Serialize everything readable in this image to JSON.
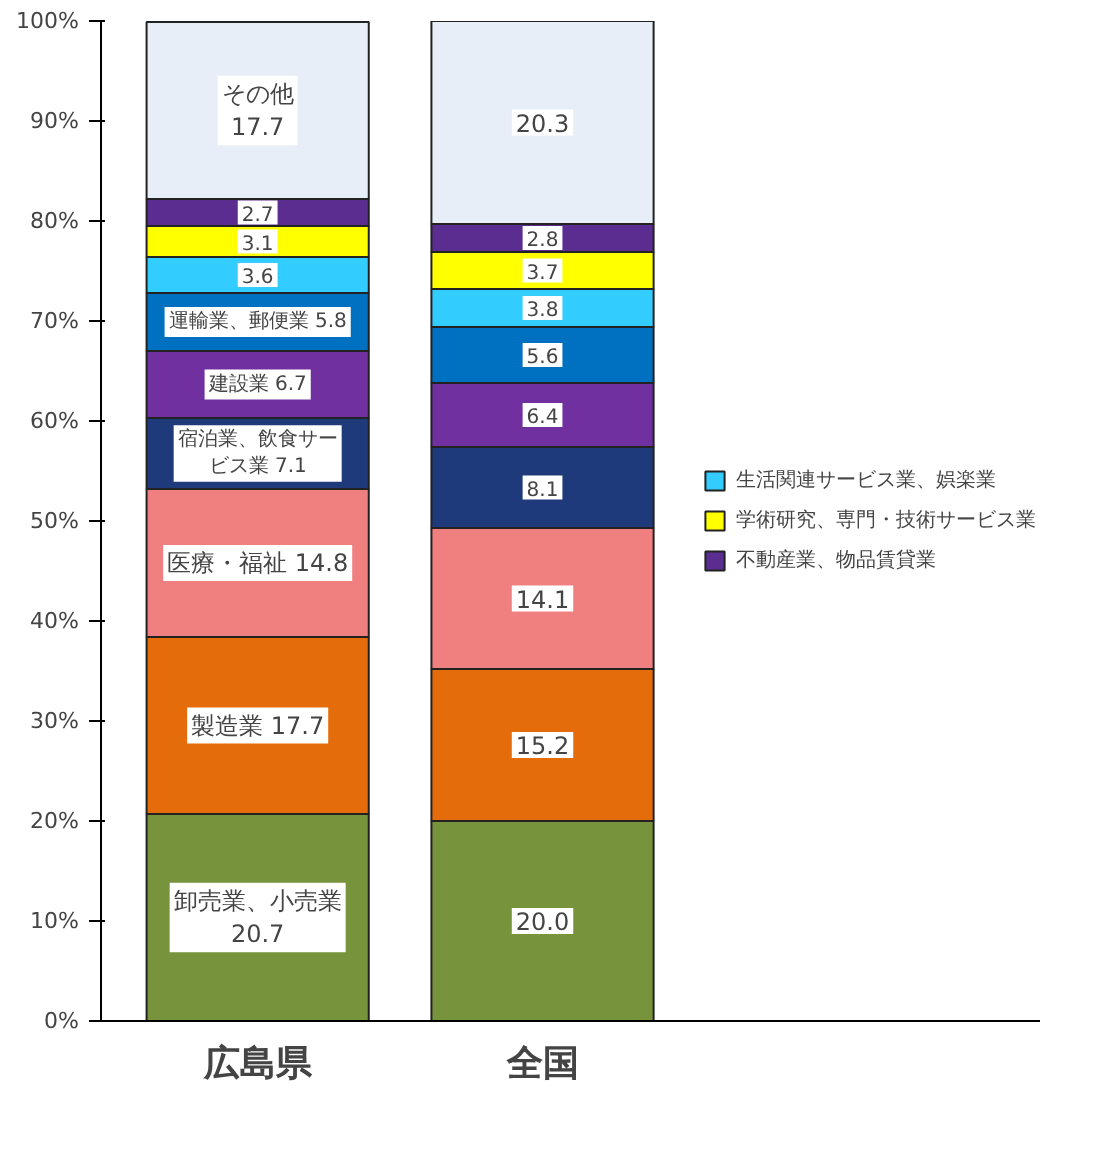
{
  "chart_data": {
    "type": "bar",
    "stacked": true,
    "categories": [
      "広島県",
      "全国"
    ],
    "ylim": [
      0,
      100
    ],
    "yticks": [
      {
        "value": 0,
        "label": "0%"
      },
      {
        "value": 10,
        "label": "10%"
      },
      {
        "value": 20,
        "label": "20%"
      },
      {
        "value": 30,
        "label": "30%"
      },
      {
        "value": 40,
        "label": "40%"
      },
      {
        "value": 50,
        "label": "50%"
      },
      {
        "value": 60,
        "label": "60%"
      },
      {
        "value": 70,
        "label": "70%"
      },
      {
        "value": 80,
        "label": "80%"
      },
      {
        "value": 90,
        "label": "90%"
      },
      {
        "value": 100,
        "label": "100%"
      }
    ],
    "grid": false,
    "legend": "right",
    "series": [
      {
        "color": "#77933c",
        "values": [
          20.7,
          20.0
        ],
        "value_labels": [
          "卸売業、小売業\n20.7",
          "20.0"
        ]
      },
      {
        "color": "#e46c0a",
        "values": [
          17.7,
          15.2
        ],
        "value_labels": [
          "製造業 17.7",
          "15.2"
        ]
      },
      {
        "color": "#f08080",
        "values": [
          14.8,
          14.1
        ],
        "value_labels": [
          "医療・福祉 14.8",
          "14.1"
        ]
      },
      {
        "color": "#1f3a7a",
        "values": [
          7.1,
          8.1
        ],
        "value_labels": [
          "宿泊業、飲食サービス業 7.1",
          "8.1"
        ]
      },
      {
        "color": "#7030a0",
        "values": [
          6.7,
          6.4
        ],
        "value_labels": [
          "建設業 6.7",
          "6.4"
        ]
      },
      {
        "color": "#0070c0",
        "values": [
          5.8,
          5.6
        ],
        "value_labels": [
          "運輸業、郵便業 5.8",
          "5.6"
        ]
      },
      {
        "name": "生活関連サービス業、娯楽業",
        "color": "#33ccff",
        "values": [
          3.6,
          3.8
        ],
        "value_labels": [
          "3.6",
          "3.8"
        ]
      },
      {
        "name": "学術研究、専門・技術サービス業",
        "color": "#ffff00",
        "values": [
          3.1,
          3.7
        ],
        "value_labels": [
          "3.1",
          "3.7"
        ]
      },
      {
        "name": "不動産業、物品賃貸業",
        "color": "#5b2d90",
        "values": [
          2.7,
          2.8
        ],
        "value_labels": [
          "2.7",
          "2.8"
        ]
      },
      {
        "color": "#e8eef7",
        "values": [
          17.7,
          20.3
        ],
        "value_labels": [
          "その他\n17.7",
          "20.3"
        ]
      }
    ]
  }
}
